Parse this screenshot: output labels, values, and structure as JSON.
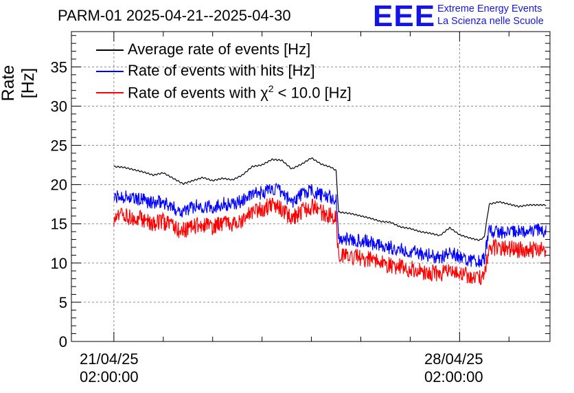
{
  "header": {
    "title": "PARM-01 2025-04-21--2025-04-30",
    "logo": "EEE",
    "logo_line1": "Extreme Energy Events",
    "logo_line2": "La Scienza nelle Scuole"
  },
  "chart_data": {
    "type": "line",
    "ylabel": "Rate [Hz]",
    "ylim": [
      0,
      39.5
    ],
    "yticks": [
      "0",
      "5",
      "10",
      "15",
      "20",
      "25",
      "30",
      "35"
    ],
    "xticks": [
      {
        "date": "21/04/25",
        "time": "02:00:00",
        "day": 0
      },
      {
        "date": "28/04/25",
        "time": "02:00:00",
        "day": 7
      }
    ],
    "xlim_days": [
      -0.86,
      8.83
    ],
    "grid": true,
    "legend_position": "top-left",
    "series": [
      {
        "name": "Average rate of events [Hz]",
        "color": "#000000",
        "x": [
          0.0,
          0.2,
          0.4,
          0.6,
          0.8,
          1.0,
          1.2,
          1.4,
          1.6,
          1.8,
          2.0,
          2.2,
          2.4,
          2.6,
          2.8,
          3.0,
          3.2,
          3.4,
          3.6,
          3.8,
          4.0,
          4.2,
          4.4,
          4.5,
          4.55,
          4.8,
          5.0,
          5.2,
          5.4,
          5.6,
          5.8,
          6.0,
          6.2,
          6.4,
          6.6,
          6.8,
          7.0,
          7.2,
          7.4,
          7.5,
          7.6,
          7.8,
          8.0,
          8.2,
          8.4,
          8.6,
          8.75
        ],
        "values": [
          22.3,
          22.2,
          21.9,
          21.6,
          21.2,
          21.5,
          20.8,
          20.1,
          20.5,
          20.9,
          20.5,
          20.8,
          20.6,
          21.2,
          22.3,
          22.5,
          23.2,
          23.1,
          22.0,
          22.6,
          23.4,
          22.6,
          22.2,
          21.8,
          16.5,
          16.3,
          16.0,
          15.7,
          15.3,
          15.2,
          14.6,
          14.4,
          14.0,
          13.8,
          13.5,
          14.5,
          13.6,
          13.2,
          12.9,
          13.3,
          17.5,
          17.8,
          17.5,
          17.2,
          17.4,
          17.4,
          17.4
        ]
      },
      {
        "name": "Rate of events with hits [Hz]",
        "color": "#0000ff",
        "x": [
          0.0,
          0.2,
          0.4,
          0.6,
          0.8,
          1.0,
          1.2,
          1.4,
          1.6,
          1.8,
          2.0,
          2.2,
          2.4,
          2.6,
          2.8,
          3.0,
          3.2,
          3.4,
          3.6,
          3.8,
          4.0,
          4.2,
          4.4,
          4.5,
          4.55,
          4.8,
          5.0,
          5.2,
          5.4,
          5.6,
          5.8,
          6.0,
          6.2,
          6.4,
          6.6,
          6.8,
          7.0,
          7.2,
          7.4,
          7.5,
          7.6,
          7.8,
          8.0,
          8.2,
          8.4,
          8.6,
          8.75
        ],
        "values": [
          18.3,
          18.5,
          18.2,
          18.0,
          17.6,
          17.8,
          17.0,
          16.6,
          17.2,
          17.3,
          17.1,
          17.6,
          17.4,
          18.0,
          18.7,
          19.0,
          19.5,
          19.0,
          17.8,
          18.8,
          19.2,
          18.6,
          18.3,
          18.0,
          13.2,
          13.0,
          12.8,
          12.6,
          12.2,
          12.0,
          11.7,
          11.5,
          11.2,
          11.0,
          10.6,
          11.6,
          10.8,
          10.4,
          10.2,
          10.5,
          14.0,
          14.0,
          14.0,
          14.0,
          14.1,
          14.1,
          14.1
        ]
      },
      {
        "name": "Rate of events with χ2 < 10.0 [Hz]",
        "color": "#ff0000",
        "x": [
          0.0,
          0.2,
          0.4,
          0.6,
          0.8,
          1.0,
          1.2,
          1.4,
          1.6,
          1.8,
          2.0,
          2.2,
          2.4,
          2.6,
          2.8,
          3.0,
          3.2,
          3.4,
          3.6,
          3.8,
          4.0,
          4.2,
          4.4,
          4.5,
          4.55,
          4.8,
          5.0,
          5.2,
          5.4,
          5.6,
          5.8,
          6.0,
          6.2,
          6.4,
          6.6,
          6.8,
          7.0,
          7.2,
          7.4,
          7.5,
          7.6,
          7.8,
          8.0,
          8.2,
          8.4,
          8.6,
          8.75
        ],
        "values": [
          15.8,
          16.0,
          15.8,
          15.6,
          15.1,
          15.3,
          14.5,
          14.1,
          14.7,
          14.8,
          14.6,
          15.1,
          14.9,
          15.5,
          16.3,
          16.8,
          17.4,
          16.8,
          15.5,
          16.6,
          17.2,
          16.4,
          16.1,
          15.8,
          11.2,
          10.8,
          10.6,
          10.4,
          10.0,
          9.8,
          9.5,
          9.3,
          9.0,
          8.8,
          8.5,
          9.4,
          8.7,
          8.3,
          8.1,
          8.4,
          12.0,
          12.0,
          11.8,
          11.7,
          11.8,
          11.8,
          11.8
        ]
      }
    ]
  },
  "legend": {
    "item1": "Average rate of events [Hz]",
    "item2": "Rate of events with hits [Hz]",
    "item3_prefix": "Rate of events with χ",
    "item3_sup": "2",
    "item3_suffix": " < 10.0 [Hz]"
  }
}
